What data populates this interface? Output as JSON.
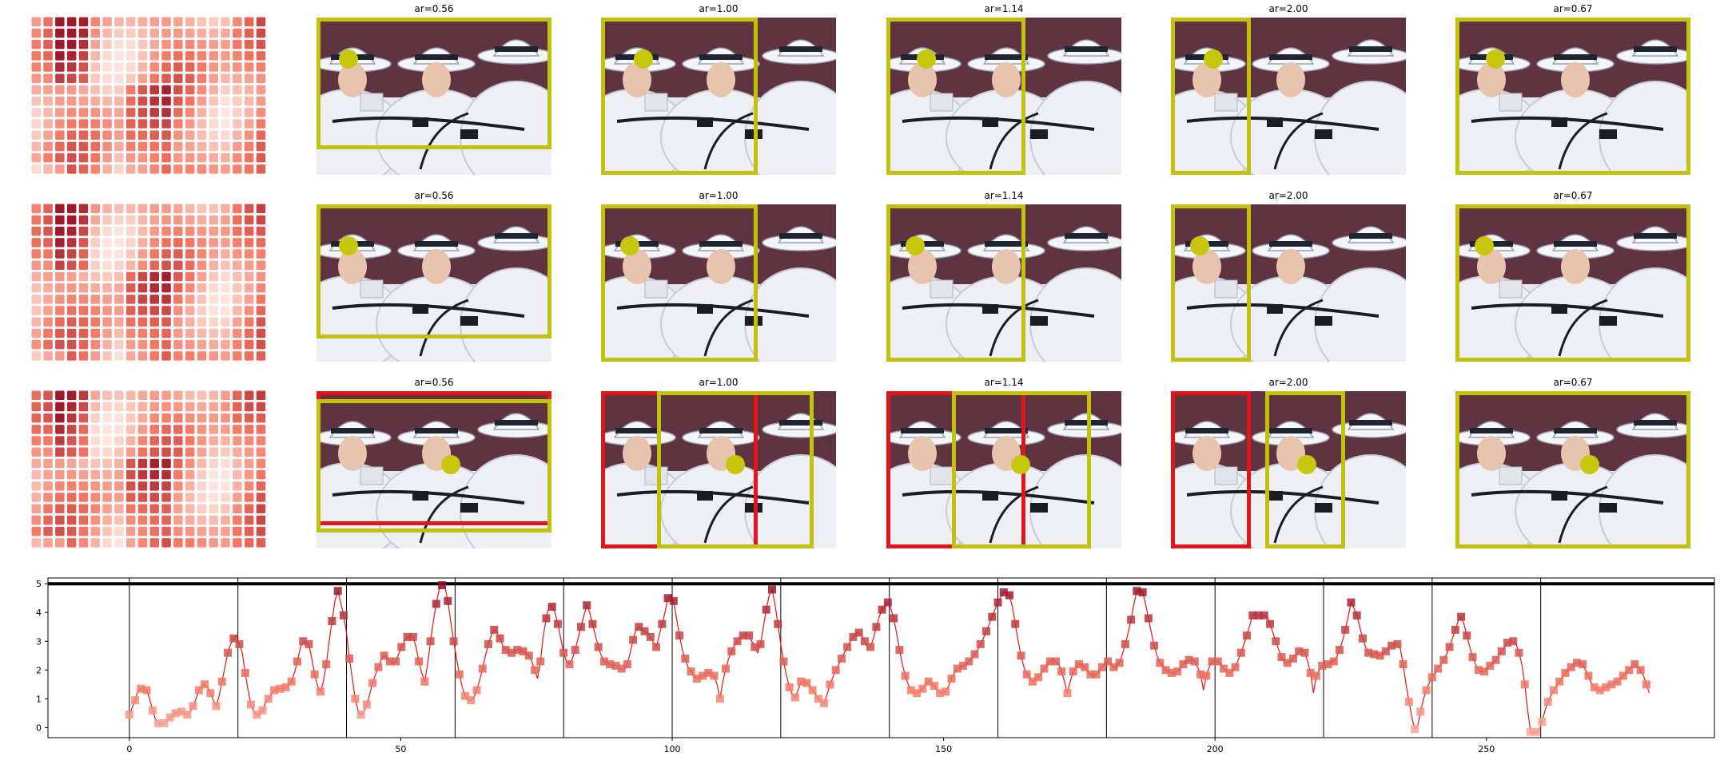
{
  "colors": {
    "yellow": "#c2c20c",
    "red": "#e0161b",
    "dot": "#c7c80e",
    "line": "#e0161b"
  },
  "rows": [
    {
      "titles": [
        "ar=0.56",
        "ar=1.00",
        "ar=1.14",
        "ar=2.00",
        "ar=0.67"
      ]
    },
    {
      "titles": [
        "ar=0.56",
        "ar=1.00",
        "ar=1.14",
        "ar=2.00",
        "ar=0.67"
      ]
    },
    {
      "titles": [
        "ar=0.56",
        "ar=1.00",
        "ar=1.14",
        "ar=2.00",
        "ar=0.67"
      ]
    }
  ],
  "chart_data": {
    "type": "line",
    "x_ticks": [
      "0",
      "50",
      "100",
      "150",
      "200",
      "250"
    ],
    "y_ticks": [
      "0",
      "1",
      "2",
      "3",
      "4",
      "5"
    ],
    "xlim": [
      -15,
      292
    ],
    "ylim": [
      -0.35,
      5.2
    ],
    "grid": false,
    "vlines": [
      0,
      20,
      40,
      60,
      80,
      100,
      120,
      140,
      160,
      180,
      200,
      220,
      240,
      260
    ],
    "hline": 5,
    "series": [
      {
        "values": [
          0.45,
          0.7,
          0.95,
          1.3,
          1.35,
          1.4,
          1.3,
          1.0,
          0.6,
          0.3,
          0.15,
          0.1,
          0.15,
          0.25,
          0.35,
          0.45,
          0.5,
          0.55,
          0.55,
          0.5,
          0.45,
          0.55,
          0.75,
          1.0,
          1.3,
          1.45,
          1.5,
          1.4,
          1.2,
          0.95,
          0.75,
          1.1,
          1.6,
          2.1,
          2.6,
          2.9,
          3.1,
          3.2,
          2.9,
          2.6,
          1.9,
          1.3,
          0.8,
          0.55,
          0.45,
          0.45,
          0.6,
          0.85,
          1.0,
          1.15,
          1.3,
          1.35,
          1.35,
          1.35,
          1.4,
          1.45,
          1.6,
          1.9,
          2.3,
          2.75,
          3.0,
          2.95,
          2.9,
          2.4,
          1.85,
          1.45,
          1.25,
          1.6,
          2.2,
          3.0,
          3.7,
          4.4,
          4.75,
          4.35,
          3.9,
          3.3,
          2.4,
          1.7,
          1.0,
          0.6,
          0.45,
          0.55,
          0.8,
          1.15,
          1.55,
          1.85,
          2.1,
          2.35,
          2.5,
          2.45,
          2.3,
          2.2,
          2.3,
          2.55,
          2.8,
          3.0,
          3.15,
          3.2,
          3.15,
          2.8,
          2.3,
          1.9,
          1.6,
          2.2,
          3.0,
          3.7,
          4.3,
          4.8,
          4.95,
          4.9,
          4.4,
          3.7,
          3.0,
          2.4,
          1.85,
          1.4,
          1.1,
          0.95,
          0.95,
          1.05,
          1.3,
          1.65,
          2.05,
          2.5,
          2.9,
          3.2,
          3.4,
          3.3,
          3.1,
          2.85,
          2.7,
          2.6,
          2.6,
          2.65,
          2.7,
          2.7,
          2.65,
          2.6,
          2.5,
          2.3,
          2.0,
          1.7,
          2.3,
          3.2,
          3.8,
          4.25,
          4.2,
          4.0,
          3.6,
          3.1,
          2.6,
          2.3,
          2.2,
          2.4,
          2.7,
          3.1,
          3.5,
          3.9,
          4.25,
          4.0,
          3.6,
          3.2,
          2.8,
          2.5,
          2.3,
          2.25,
          2.2,
          2.15,
          2.15,
          2.1,
          2.05,
          2.0,
          2.2,
          2.6,
          3.05,
          3.4,
          3.5,
          3.45,
          3.35,
          3.3,
          3.15,
          2.95,
          2.8,
          3.2,
          3.6,
          4.0,
          4.5,
          4.6,
          4.4,
          3.8,
          3.2,
          2.7,
          2.4,
          2.1,
          1.95,
          1.8,
          1.7,
          1.75,
          1.8,
          1.85,
          1.9,
          1.85,
          1.8,
          1.5,
          1.0,
          1.6,
          2.05,
          2.4,
          2.65,
          2.85,
          3.0,
          3.15,
          3.2,
          3.25,
          3.2,
          3.0,
          2.8,
          2.6,
          2.9,
          3.5,
          4.1,
          4.6,
          4.8,
          4.3,
          3.6,
          2.9,
          2.3,
          1.8,
          1.4,
          1.15,
          1.05,
          1.3,
          1.6,
          1.6,
          1.55,
          1.45,
          1.3,
          1.15,
          1.0,
          0.9,
          0.85,
          1.15,
          1.5,
          1.75,
          2.0,
          2.2,
          2.4,
          2.6,
          2.8,
          3.0,
          3.15,
          3.3,
          3.3,
          3.2,
          3.0,
          2.75,
          2.8,
          3.1,
          3.5,
          3.85,
          4.1,
          4.25,
          4.35,
          4.15,
          3.8,
          3.3,
          2.7,
          2.2,
          1.8,
          1.5,
          1.3,
          1.2,
          1.2,
          1.25,
          1.35,
          1.5,
          1.6,
          1.55,
          1.45,
          1.3,
          1.2,
          1.15,
          1.25,
          1.45,
          1.7,
          1.9,
          2.05,
          2.1,
          2.15,
          2.2,
          2.3,
          2.4,
          2.55,
          2.7,
          2.9,
          3.1,
          3.35,
          3.6,
          3.85,
          4.1,
          4.35,
          4.55,
          4.7,
          4.65,
          4.6,
          4.2,
          3.6,
          3.0,
          2.5,
          2.1,
          1.85,
          1.7,
          1.6,
          1.65,
          1.75,
          1.9,
          2.05,
          2.2,
          2.3,
          2.35,
          2.3,
          2.2,
          1.95,
          1.6,
          1.2,
          1.6,
          1.95,
          2.1,
          2.2,
          2.2,
          2.1,
          1.95,
          1.85,
          1.8,
          1.85,
          1.95,
          2.1,
          2.25,
          2.3,
          2.2,
          2.1,
          2.05,
          2.25,
          2.55,
          2.9,
          3.3,
          3.75,
          4.3,
          4.75,
          4.8,
          4.7,
          4.3,
          3.8,
          3.3,
          2.85,
          2.5,
          2.25,
          2.1,
          2.0,
          1.95,
          1.9,
          1.9,
          1.95,
          2.05,
          2.2,
          2.3,
          2.35,
          2.35,
          2.3,
          2.1,
          1.85,
          1.3,
          1.8,
          2.1,
          2.3,
          2.35,
          2.3,
          2.2,
          2.05,
          1.95,
          1.9,
          1.95,
          2.1,
          2.35,
          2.6,
          2.9,
          3.2,
          3.55,
          3.9,
          3.95,
          3.9,
          3.85,
          3.9,
          3.85,
          3.6,
          3.3,
          3.0,
          2.7,
          2.45,
          2.25,
          2.25,
          2.3,
          2.4,
          2.55,
          2.65,
          2.7,
          2.6,
          2.3,
          1.9,
          1.2,
          1.8,
          2.0,
          2.15,
          2.2,
          2.2,
          2.25,
          2.3,
          2.45,
          2.7,
          3.0,
          3.4,
          3.85,
          4.35,
          4.15,
          3.9,
          3.5,
          3.1,
          2.8,
          2.6,
          2.5,
          2.55,
          2.6,
          2.5,
          2.55,
          2.65,
          2.75,
          2.85,
          2.9,
          2.9,
          2.75,
          2.2,
          1.5,
          0.9,
          0.35,
          -0.05,
          0.05,
          0.55,
          1.0,
          1.3,
          1.55,
          1.75,
          1.9,
          2.05,
          2.2,
          2.35,
          2.55,
          2.8,
          3.1,
          3.4,
          3.7,
          3.85,
          3.6,
          3.2,
          2.8,
          2.45,
          2.2,
          2.0,
          1.95,
          1.95,
          2.05,
          2.15,
          2.25,
          2.35,
          2.5,
          2.65,
          2.8,
          2.95,
          3.0,
          3.0,
          2.9,
          2.6,
          2.2,
          1.5,
          0.6,
          -0.15,
          -0.2,
          -0.15,
          -0.1,
          0.2,
          0.6,
          0.9,
          1.1,
          1.3,
          1.45,
          1.6,
          1.75,
          1.9,
          2.0,
          2.1,
          2.2,
          2.25,
          2.25,
          2.2,
          2.0,
          1.8,
          1.55,
          1.4,
          1.3,
          1.3,
          1.35,
          1.4,
          1.45,
          1.5,
          1.55,
          1.6,
          1.7,
          1.8,
          1.9,
          2.0,
          2.1,
          2.2,
          2.1,
          2.0,
          1.8,
          1.5,
          1.2
        ]
      }
    ]
  }
}
